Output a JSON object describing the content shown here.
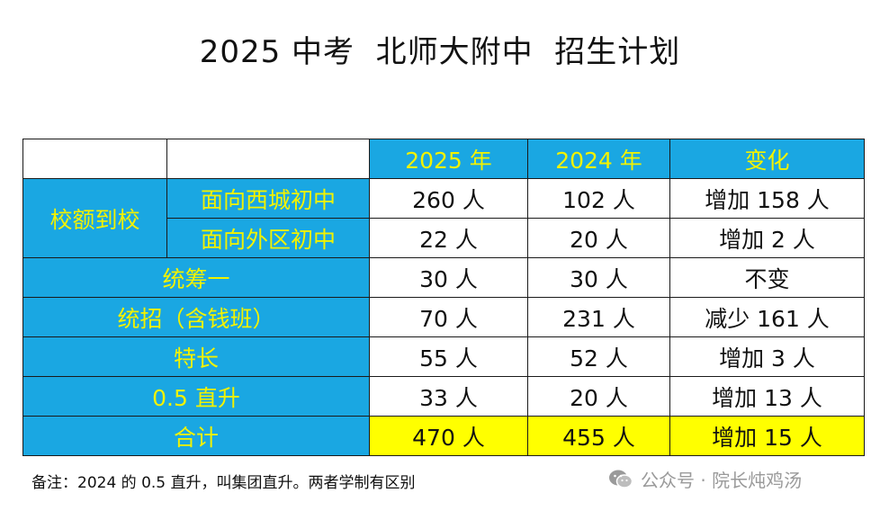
{
  "title": "2025 中考  北师大附中  招生计划",
  "header": {
    "col_2025": "2025 年",
    "col_2024": "2024 年",
    "col_change": "变化"
  },
  "rows": [
    {
      "group": "校额到校",
      "label": "面向西城初中",
      "y2025": "260 人",
      "y2024": "102 人",
      "change": "增加 158 人"
    },
    {
      "label": "面向外区初中",
      "y2025": "22 人",
      "y2024": "20 人",
      "change": "增加 2 人"
    },
    {
      "label": "统筹一",
      "y2025": "30 人",
      "y2024": "30 人",
      "change": "不变"
    },
    {
      "label": "统招（含钱班）",
      "y2025": "70 人",
      "y2024": "231 人",
      "change": "减少 161 人"
    },
    {
      "label": "特长",
      "y2025": "55 人",
      "y2024": "52 人",
      "change": "增加 3 人"
    },
    {
      "label": "0.5 直升",
      "y2025": "33 人",
      "y2024": "20 人",
      "change": "增加 13 人"
    }
  ],
  "total": {
    "label": "合计",
    "y2025": "470 人",
    "y2024": "455 人",
    "change": "增加 15 人"
  },
  "note": "备注：2024 的 0.5 直升，叫集团直升。两者学制有区别",
  "brand": {
    "text": "公众号 · 院长炖鸡汤",
    "icon": "wechat-icon"
  },
  "colors": {
    "header_blue": "#1aa7e2",
    "label_yellow_text": "#f2f200",
    "total_highlight": "#ffff00"
  }
}
